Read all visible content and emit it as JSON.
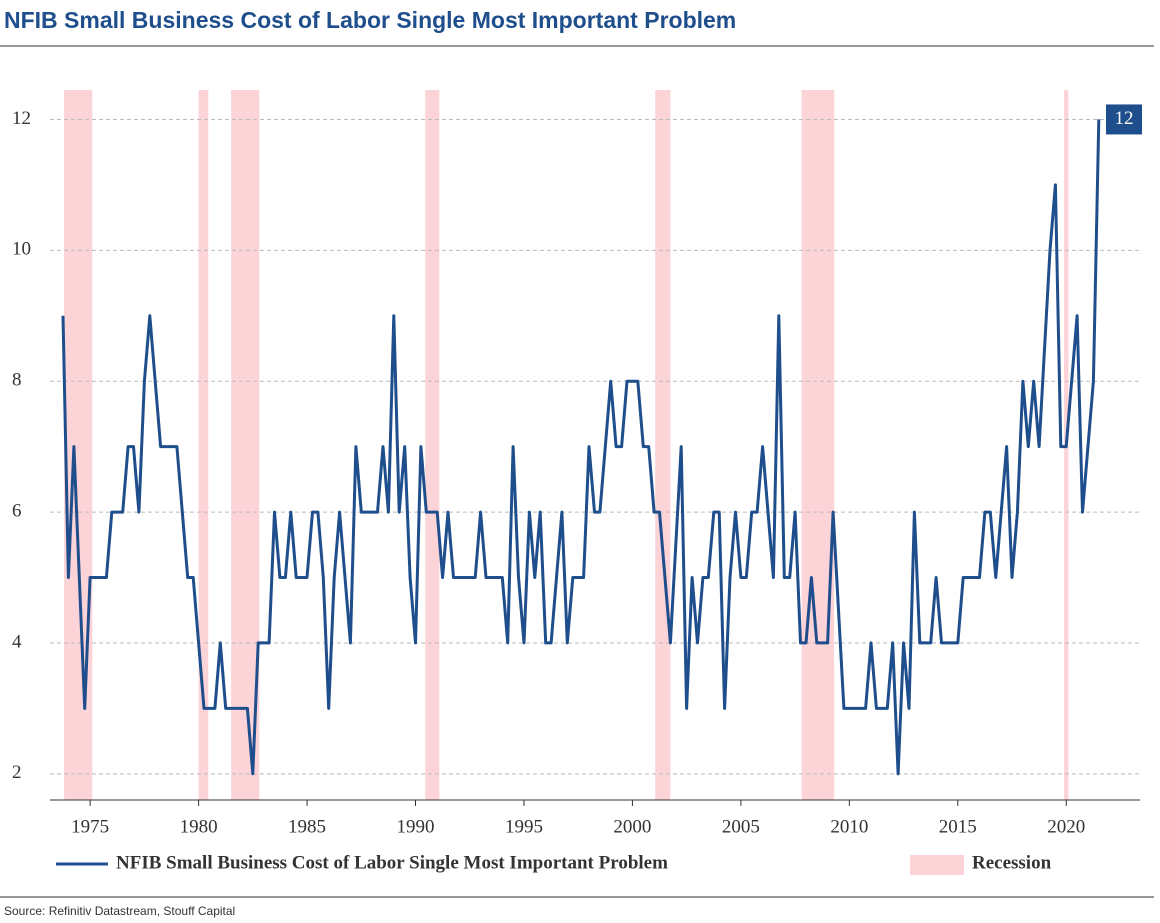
{
  "chart_data": {
    "type": "line",
    "title": "NFIB Small Business Cost of Labor Single Most Important Problem",
    "source": "Source: Refinitiv Datastream, Stouff Capital",
    "x": [
      1973.75,
      1974.0,
      1974.25,
      1974.75,
      1975.0,
      1975.75,
      1976.0,
      1976.5,
      1976.75,
      1977.0,
      1977.25,
      1977.5,
      1977.75,
      1978.25,
      1979.0,
      1979.5,
      1979.75,
      1980.25,
      1980.75,
      1981.0,
      1981.25,
      1982.25,
      1982.5,
      1982.75,
      1983.25,
      1983.5,
      1983.75,
      1984.0,
      1984.25,
      1984.5,
      1985.0,
      1985.25,
      1985.5,
      1985.75,
      1986.0,
      1986.25,
      1986.5,
      1987.0,
      1987.25,
      1987.5,
      1988.25,
      1988.5,
      1988.75,
      1989.0,
      1989.25,
      1989.5,
      1989.75,
      1990.0,
      1990.25,
      1990.5,
      1991.0,
      1991.25,
      1991.5,
      1991.75,
      1992.75,
      1993.0,
      1993.25,
      1994.0,
      1994.25,
      1994.5,
      1994.75,
      1995.0,
      1995.25,
      1995.5,
      1995.75,
      1996.0,
      1996.25,
      1996.75,
      1997.0,
      1997.25,
      1997.75,
      1998.0,
      1998.25,
      1998.5,
      1999.0,
      1999.25,
      1999.5,
      1999.75,
      2000.25,
      2000.5,
      2000.75,
      2001.0,
      2001.25,
      2001.75,
      2002.25,
      2002.5,
      2002.75,
      2003.0,
      2003.25,
      2003.5,
      2003.75,
      2004.0,
      2004.25,
      2004.5,
      2004.75,
      2005.0,
      2005.25,
      2005.5,
      2005.75,
      2006.0,
      2006.5,
      2006.75,
      2007.0,
      2007.25,
      2007.5,
      2007.75,
      2008.0,
      2008.25,
      2008.5,
      2009.0,
      2009.25,
      2009.75,
      2010.75,
      2011.0,
      2011.25,
      2011.75,
      2012.0,
      2012.25,
      2012.5,
      2012.75,
      2013.0,
      2013.25,
      2013.75,
      2014.0,
      2014.25,
      2015.0,
      2015.25,
      2016.0,
      2016.25,
      2016.5,
      2016.75,
      2017.25,
      2017.5,
      2017.75,
      2018.0,
      2018.25,
      2018.5,
      2018.75,
      2019.25,
      2019.5,
      2019.75,
      2020.0,
      2020.5,
      2020.75,
      2021.25,
      2021.5
    ],
    "series": [
      {
        "name": "NFIB Small Business Cost of Labor Single Most Important Problem",
        "color": "#1f4e8c",
        "values": [
          9,
          5,
          7,
          3,
          5,
          5,
          6,
          6,
          7,
          7,
          6,
          8,
          9,
          7,
          7,
          5,
          5,
          3,
          3,
          4,
          3,
          3,
          2,
          4,
          4,
          6,
          5,
          5,
          6,
          5,
          5,
          6,
          6,
          5,
          3,
          5,
          6,
          4,
          7,
          6,
          6,
          7,
          6,
          9,
          6,
          7,
          5,
          4,
          7,
          6,
          6,
          5,
          6,
          5,
          5,
          6,
          5,
          5,
          4,
          7,
          5,
          4,
          6,
          5,
          6,
          4,
          4,
          6,
          4,
          5,
          5,
          7,
          6,
          6,
          8,
          7,
          7,
          8,
          8,
          7,
          7,
          6,
          6,
          4,
          7,
          3,
          5,
          4,
          5,
          5,
          6,
          6,
          3,
          5,
          6,
          5,
          5,
          6,
          6,
          7,
          5,
          9,
          5,
          5,
          6,
          4,
          4,
          5,
          4,
          4,
          6,
          3,
          3,
          4,
          3,
          3,
          4,
          2,
          4,
          3,
          6,
          4,
          4,
          5,
          4,
          4,
          5,
          5,
          6,
          6,
          5,
          7,
          5,
          6,
          8,
          7,
          8,
          7,
          10,
          11,
          7,
          7,
          9,
          6,
          8,
          12
        ]
      }
    ],
    "recession": {
      "name": "Recession",
      "color": "#fcd3d6",
      "ranges": [
        [
          1973.8,
          1975.1
        ],
        [
          1980.0,
          1980.45
        ],
        [
          1981.5,
          1982.8
        ],
        [
          1990.45,
          1991.1
        ],
        [
          2001.05,
          2001.75
        ],
        [
          2007.8,
          2009.3
        ],
        [
          2019.9,
          2020.1
        ]
      ]
    },
    "xlim": [
      1973.15,
      2023.4
    ],
    "ylim": [
      1.6,
      12.45
    ],
    "xticks": [
      1975,
      1980,
      1985,
      1990,
      1995,
      2000,
      2005,
      2010,
      2015,
      2020
    ],
    "yticks": [
      2,
      4,
      6,
      8,
      10,
      12
    ],
    "grid": true
  }
}
